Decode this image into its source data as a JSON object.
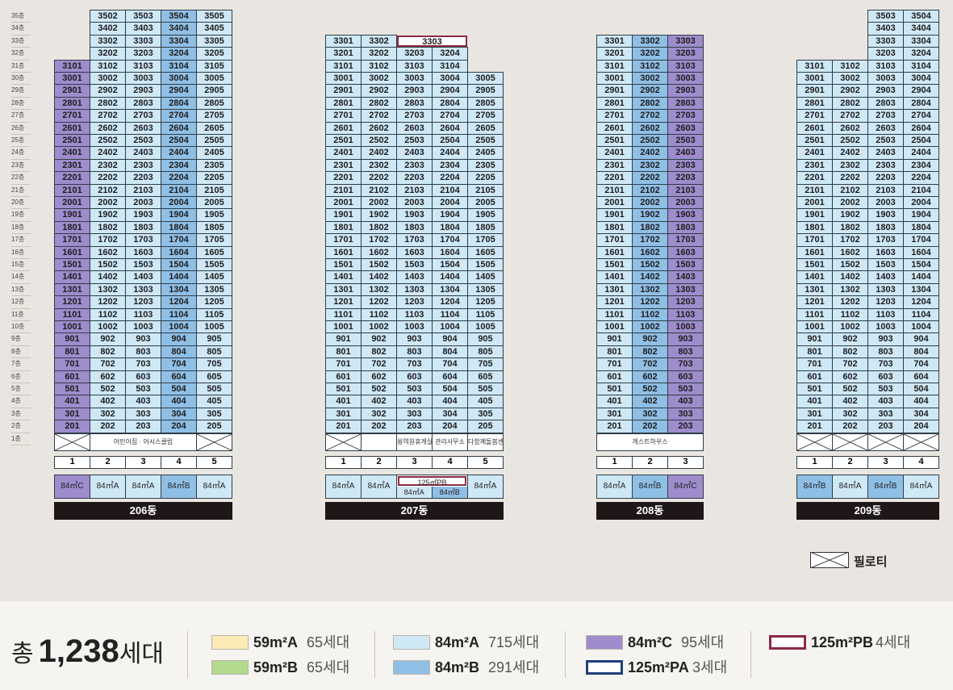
{
  "floors": [
    "35층",
    "34층",
    "33층",
    "32층",
    "31층",
    "30층",
    "29층",
    "28층",
    "27층",
    "26층",
    "25층",
    "24층",
    "23층",
    "22층",
    "21층",
    "20층",
    "19층",
    "18층",
    "17층",
    "16층",
    "15층",
    "14층",
    "13층",
    "12층",
    "11층",
    "10층",
    "9층",
    "8층",
    "7층",
    "6층",
    "5층",
    "4층",
    "3층",
    "2층",
    "1층"
  ],
  "buildings": [
    {
      "name": "206동",
      "lines": [
        {
          "num": "1",
          "type": "84㎡C",
          "cls": "tC",
          "top": 31
        },
        {
          "num": "2",
          "type": "84㎡A",
          "cls": "tA",
          "top": 35
        },
        {
          "num": "3",
          "type": "84㎡A",
          "cls": "tA",
          "top": 35
        },
        {
          "num": "4",
          "type": "84㎡B",
          "cls": "tB",
          "top": 35
        },
        {
          "num": "5",
          "type": "84㎡A",
          "cls": "tA",
          "top": 35
        }
      ],
      "ground": [
        {
          "kind": "piloti",
          "span": 1
        },
        {
          "kind": "text",
          "span": 3,
          "label": "어린이집 · 어시스클럽"
        },
        {
          "kind": "piloti",
          "span": 1
        }
      ]
    },
    {
      "name": "207동",
      "lines": [
        {
          "num": "1",
          "type": "84㎡A",
          "cls": "tA",
          "top": 33
        },
        {
          "num": "2",
          "type": "84㎡A",
          "cls": "tA",
          "top": 33
        },
        {
          "num": "3",
          "type": "125㎡PB",
          "cls": "tA",
          "top": 32,
          "pb": "3303",
          "split": {
            "top": "125㎡PB",
            "left": "84㎡A",
            "right": "84㎡B"
          }
        },
        {
          "num": "4",
          "type": "84㎡B",
          "cls": "tA",
          "top": 32
        },
        {
          "num": "5",
          "type": "84㎡A",
          "cls": "tA",
          "top": 30
        }
      ],
      "ground": [
        {
          "kind": "piloti",
          "span": 1
        },
        {
          "kind": "text",
          "span": 1,
          "label": ""
        },
        {
          "kind": "text",
          "span": 1,
          "label": "용역원휴게실"
        },
        {
          "kind": "text",
          "span": 1,
          "label": "관리사무소"
        },
        {
          "kind": "text",
          "span": 1,
          "label": "다함께돌봄센터"
        }
      ]
    },
    {
      "name": "208동",
      "lines": [
        {
          "num": "1",
          "type": "84㎡A",
          "cls": "tA",
          "top": 33
        },
        {
          "num": "2",
          "type": "84㎡B",
          "cls": "tB",
          "top": 33
        },
        {
          "num": "3",
          "type": "84㎡C",
          "cls": "tC",
          "top": 33
        }
      ],
      "ground": [
        {
          "kind": "text",
          "span": 3,
          "label": "게스트하우스"
        }
      ]
    },
    {
      "name": "209동",
      "lines": [
        {
          "num": "1",
          "type": "84㎡B",
          "cls": "tA",
          "top": 31
        },
        {
          "num": "2",
          "type": "84㎡A",
          "cls": "tA",
          "top": 31
        },
        {
          "num": "3",
          "type": "84㎡B",
          "cls": "tA",
          "top": 35
        },
        {
          "num": "4",
          "type": "84㎡A",
          "cls": "tA",
          "top": 35
        }
      ],
      "ground": [
        {
          "kind": "piloti",
          "span": 1
        },
        {
          "kind": "piloti",
          "span": 1
        },
        {
          "kind": "piloti",
          "span": 1
        },
        {
          "kind": "piloti",
          "span": 1
        }
      ]
    }
  ],
  "piloti_label": "필로티",
  "legend": {
    "total_prefix": "총",
    "total_number": "1,238",
    "total_suffix": "세대",
    "items": [
      {
        "name": "59m²A",
        "count": "65세대",
        "color": "#fcebb6",
        "style": "fill"
      },
      {
        "name": "59m²B",
        "count": "65세대",
        "color": "#b2d98e",
        "style": "fill"
      },
      {
        "name": "84m²A",
        "count": "715세대",
        "color": "#cfe8f6",
        "style": "fill"
      },
      {
        "name": "84m²B",
        "count": "291세대",
        "color": "#90bfe6",
        "style": "fill"
      },
      {
        "name": "84m²C",
        "count": "95세대",
        "color": "#9e8ccc",
        "style": "fill"
      },
      {
        "name": "125m²PA",
        "count": "3세대",
        "color": "#1e3f7a",
        "style": "outline"
      },
      {
        "name": "125m²PB",
        "count": "4세대",
        "color": "#8c2b45",
        "style": "outline"
      }
    ]
  }
}
